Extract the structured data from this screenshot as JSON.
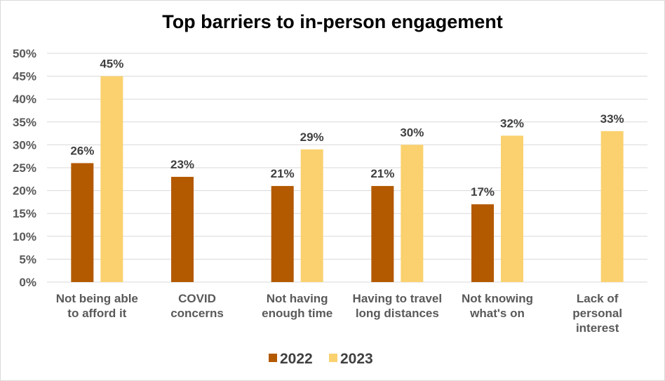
{
  "chart_data": {
    "type": "bar",
    "title": "Top barriers to in-person engagement",
    "xlabel": "",
    "ylabel": "",
    "ylim": [
      0,
      50
    ],
    "ytick_labels": [
      "0%",
      "5%",
      "10%",
      "15%",
      "20%",
      "25%",
      "30%",
      "35%",
      "40%",
      "45%",
      "50%"
    ],
    "categories": [
      [
        "Not being able",
        "to afford it"
      ],
      [
        "COVID",
        "concerns"
      ],
      [
        "Not having",
        "enough time"
      ],
      [
        "Having to travel",
        "long distances"
      ],
      [
        "Not knowing",
        "what's on"
      ],
      [
        "Lack of",
        "personal",
        "interest"
      ]
    ],
    "series": [
      {
        "name": "2022",
        "color": "#b35900",
        "values": [
          26,
          23,
          21,
          21,
          17,
          null
        ]
      },
      {
        "name": "2023",
        "color": "#fad16e",
        "values": [
          45,
          null,
          29,
          30,
          32,
          33
        ]
      }
    ],
    "value_suffix": "%",
    "grid": true,
    "legend_position": "bottom"
  }
}
